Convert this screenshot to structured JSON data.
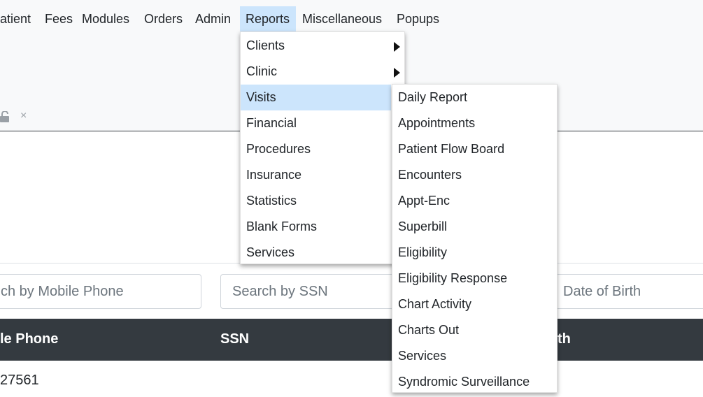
{
  "nav": {
    "items": [
      "atient",
      "Fees",
      "Modules",
      "Orders",
      "Admin",
      "Reports",
      "Miscellaneous",
      "Popups"
    ],
    "active": "Reports"
  },
  "toolbar": {
    "lock_icon": "unlock-icon",
    "close_label": "×"
  },
  "reports_menu": {
    "items": [
      "Clients",
      "Clinic",
      "Visits",
      "Financial",
      "Procedures",
      "Insurance",
      "Statistics",
      "Blank Forms",
      "Services"
    ],
    "active": "Visits"
  },
  "visits_submenu": {
    "items": [
      "Daily Report",
      "Appointments",
      "Patient Flow Board",
      "Encounters",
      "Appt-Enc",
      "Superbill",
      "Eligibility",
      "Eligibility Response",
      "Chart Activity",
      "Charts Out",
      "Services",
      "Syndromic Surveillance"
    ]
  },
  "search": {
    "mobile_placeholder": "ch by Mobile Phone",
    "ssn_placeholder": "Search by SSN",
    "dob_placeholder": "Date of Birth"
  },
  "table": {
    "headers": [
      "le Phone",
      "SSN",
      "th"
    ],
    "rows": [
      [
        "27561"
      ]
    ]
  },
  "colors": {
    "highlight": "#cce5fc",
    "table_header": "#343a40",
    "topbar": "#f8f9fa"
  }
}
